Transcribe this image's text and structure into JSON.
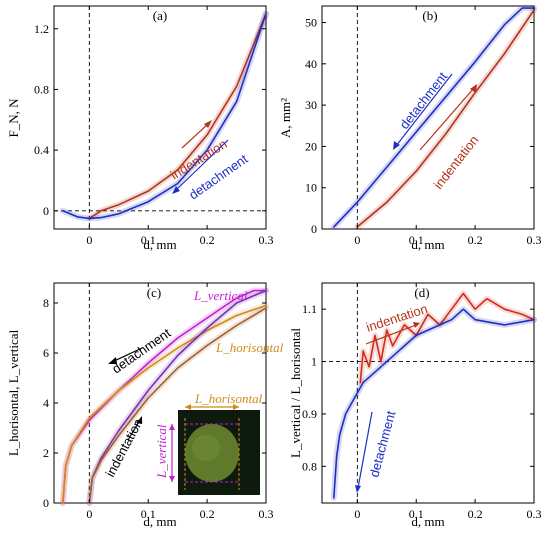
{
  "figure_caption": "",
  "chart_data": [
    {
      "id": "a",
      "type": "line",
      "panel_label": "(a)",
      "xlabel": "d, mm",
      "ylabel": "F_N, N",
      "xlim": [
        -0.06,
        0.3
      ],
      "ylim": [
        -0.12,
        1.35
      ],
      "xticks": [
        "0",
        "0.1",
        "0.2",
        "0.3"
      ],
      "xtick_values": [
        0,
        0.1,
        0.2,
        0.3
      ],
      "yticks": [
        "0",
        "0.4",
        "0.8",
        "1.2"
      ],
      "ytick_values": [
        0,
        0.4,
        0.8,
        1.2
      ],
      "reference_lines": {
        "x": 0,
        "y": 0
      },
      "annotations": [
        {
          "text": "indentation",
          "color": "#b5341b"
        },
        {
          "text": "detachment",
          "color": "#1f2fc4"
        }
      ],
      "series": [
        {
          "name": "indentation",
          "color": "#b5341b",
          "x": [
            0,
            0.02,
            0.05,
            0.1,
            0.15,
            0.2,
            0.25,
            0.3
          ],
          "y": [
            -0.05,
            0.0,
            0.04,
            0.13,
            0.27,
            0.5,
            0.82,
            1.3
          ]
        },
        {
          "name": "detachment",
          "color": "#1f2fc4",
          "x": [
            -0.045,
            -0.02,
            0,
            0.02,
            0.05,
            0.1,
            0.15,
            0.2,
            0.25,
            0.3
          ],
          "y": [
            0,
            -0.04,
            -0.05,
            -0.045,
            -0.02,
            0.06,
            0.18,
            0.4,
            0.72,
            1.3
          ]
        }
      ]
    },
    {
      "id": "b",
      "type": "line",
      "panel_label": "(b)",
      "xlabel": "d, mm",
      "ylabel": "A, mm²",
      "xlim": [
        -0.06,
        0.3
      ],
      "ylim": [
        0,
        54
      ],
      "xticks": [
        "0",
        "0.1",
        "0.2",
        "0.3"
      ],
      "xtick_values": [
        0,
        0.1,
        0.2,
        0.3
      ],
      "yticks": [
        "0",
        "10",
        "20",
        "30",
        "40",
        "50"
      ],
      "ytick_values": [
        0,
        10,
        20,
        30,
        40,
        50
      ],
      "reference_lines": {
        "x": 0
      },
      "annotations": [
        {
          "text": "detachment",
          "color": "#1f2fc4"
        },
        {
          "text": "indentation",
          "color": "#b5341b"
        }
      ],
      "series": [
        {
          "name": "indentation",
          "color": "#b5341b",
          "x": [
            0,
            0.05,
            0.1,
            0.15,
            0.2,
            0.25,
            0.3
          ],
          "y": [
            0.5,
            6.5,
            14,
            23,
            33,
            42.5,
            53
          ]
        },
        {
          "name": "detachment",
          "color": "#1f2fc4",
          "x": [
            -0.04,
            0,
            0.05,
            0.1,
            0.15,
            0.2,
            0.25,
            0.28,
            0.3
          ],
          "y": [
            0.5,
            6.5,
            15,
            23.5,
            32,
            40.5,
            49.5,
            53.5,
            53.5
          ]
        }
      ]
    },
    {
      "id": "c",
      "type": "line",
      "panel_label": "(c)",
      "xlabel": "d, mm",
      "ylabel": "L_horisontal, L_vertical",
      "xlim": [
        -0.06,
        0.3
      ],
      "ylim": [
        0,
        8.8
      ],
      "xticks": [
        "0",
        "0.1",
        "0.2",
        "0.3"
      ],
      "xtick_values": [
        0,
        0.1,
        0.2,
        0.3
      ],
      "yticks": [
        "0",
        "2",
        "4",
        "6",
        "8"
      ],
      "ytick_values": [
        0,
        2,
        4,
        6,
        8
      ],
      "reference_lines": {
        "x": 0
      },
      "annotations": [
        {
          "text": "L_vertical",
          "color": "#c020d0"
        },
        {
          "text": "L_horisontal",
          "color": "#d08a1a"
        },
        {
          "text": "detachment",
          "color": "#000000"
        },
        {
          "text": "indentation",
          "color": "#000000"
        }
      ],
      "inset": {
        "labels": [
          "L_horisontal",
          "L_vertical"
        ]
      },
      "series": [
        {
          "name": "L_vertical detachment",
          "color": "#c020d0",
          "x": [
            -0.045,
            -0.04,
            -0.03,
            0,
            0.05,
            0.1,
            0.15,
            0.2,
            0.25,
            0.28,
            0.3
          ],
          "y": [
            0,
            1.5,
            2.3,
            3.3,
            4.5,
            5.6,
            6.6,
            7.4,
            8.2,
            8.5,
            8.5
          ]
        },
        {
          "name": "L_horisontal detachment",
          "color": "#d08a1a",
          "x": [
            -0.045,
            -0.04,
            -0.03,
            0,
            0.05,
            0.1,
            0.15,
            0.2,
            0.25,
            0.3
          ],
          "y": [
            0,
            1.5,
            2.3,
            3.4,
            4.5,
            5.4,
            6.2,
            6.9,
            7.5,
            7.9
          ]
        },
        {
          "name": "L_vertical indentation",
          "color": "#7a2fb8",
          "x": [
            0,
            0.005,
            0.02,
            0.05,
            0.1,
            0.15,
            0.2,
            0.25,
            0.3
          ],
          "y": [
            0,
            1.0,
            1.8,
            2.9,
            4.5,
            5.9,
            7.0,
            8.0,
            8.5
          ]
        },
        {
          "name": "L_horisontal indentation",
          "color": "#a0602a",
          "x": [
            0,
            0.005,
            0.02,
            0.05,
            0.1,
            0.15,
            0.2,
            0.25,
            0.3
          ],
          "y": [
            0,
            1.0,
            1.7,
            2.7,
            4.2,
            5.4,
            6.3,
            7.1,
            7.8
          ]
        }
      ]
    },
    {
      "id": "d",
      "type": "line",
      "panel_label": "(d)",
      "xlabel": "d, mm",
      "ylabel": "L_vertical / L_horisontal",
      "xlim": [
        -0.06,
        0.3
      ],
      "ylim": [
        0.73,
        1.15
      ],
      "xticks": [
        "0",
        "0.1",
        "0.2",
        "0.3"
      ],
      "xtick_values": [
        0,
        0.1,
        0.2,
        0.3
      ],
      "yticks": [
        "0.8",
        "0.9",
        "1",
        "1.1"
      ],
      "ytick_values": [
        0.8,
        0.9,
        1.0,
        1.1
      ],
      "reference_lines": {
        "x": 0,
        "y": 1
      },
      "annotations": [
        {
          "text": "indentation",
          "color": "#b5341b"
        },
        {
          "text": "detachment",
          "color": "#1f2fc4"
        }
      ],
      "series": [
        {
          "name": "indentation",
          "color": "#d42a1a",
          "x": [
            0.005,
            0.01,
            0.02,
            0.03,
            0.04,
            0.05,
            0.06,
            0.08,
            0.1,
            0.12,
            0.14,
            0.16,
            0.18,
            0.2,
            0.22,
            0.25,
            0.28,
            0.3
          ],
          "y": [
            0.96,
            1.02,
            0.99,
            1.05,
            1.0,
            1.06,
            1.03,
            1.07,
            1.05,
            1.09,
            1.07,
            1.1,
            1.13,
            1.1,
            1.12,
            1.1,
            1.09,
            1.08
          ]
        },
        {
          "name": "detachment",
          "color": "#1f2fc4",
          "x": [
            -0.04,
            -0.035,
            -0.03,
            -0.02,
            -0.01,
            0,
            0.01,
            0.02,
            0.04,
            0.06,
            0.08,
            0.1,
            0.12,
            0.14,
            0.16,
            0.18,
            0.2,
            0.25,
            0.3
          ],
          "y": [
            0.74,
            0.82,
            0.86,
            0.9,
            0.92,
            0.94,
            0.96,
            0.97,
            0.99,
            1.01,
            1.03,
            1.05,
            1.06,
            1.07,
            1.08,
            1.1,
            1.08,
            1.07,
            1.08
          ]
        }
      ]
    }
  ]
}
